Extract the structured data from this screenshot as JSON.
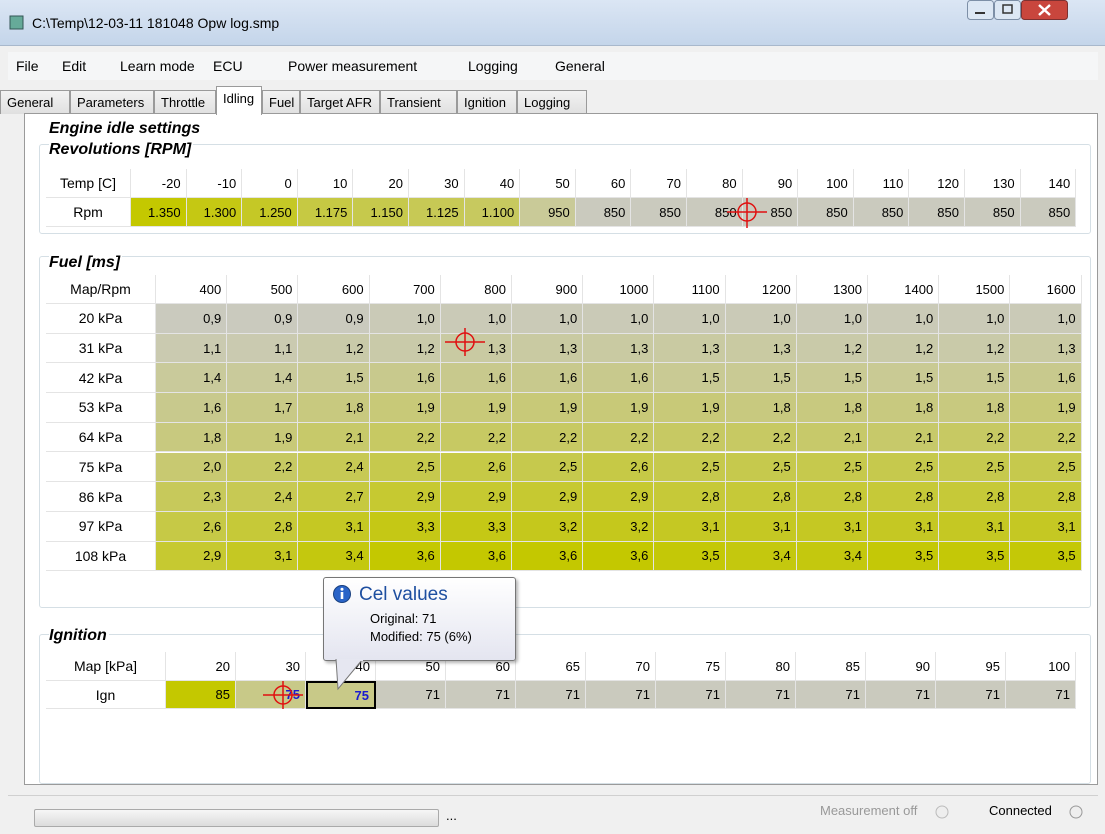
{
  "title": "C:\\Temp\\12-03-11 181048 Opw log.smp",
  "menu": [
    "File",
    "Edit",
    "Learn mode",
    "ECU",
    "Power measurement",
    "Logging",
    "General"
  ],
  "tabs": [
    "General",
    "Parameters",
    "Throttle",
    "Idling",
    "Fuel",
    "Target AFR",
    "Transient",
    "Ignition",
    "Logging"
  ],
  "section_title": "Engine idle settings",
  "rpm": {
    "title": "Revolutions [RPM]",
    "corner": "Temp [C]",
    "columns": [
      -20,
      -10,
      0,
      10,
      20,
      30,
      40,
      50,
      60,
      70,
      80,
      90,
      100,
      110,
      120,
      130,
      140
    ],
    "row_label": "Rpm",
    "values": [
      "1.350",
      "1.300",
      "1.250",
      "1.175",
      "1.150",
      "1.125",
      "1.100",
      "950",
      "850",
      "850",
      "850",
      "850",
      "850",
      "850",
      "850",
      "850",
      "850"
    ]
  },
  "fuel": {
    "title": "Fuel [ms]",
    "corner": "Map/Rpm",
    "columns": [
      400,
      500,
      600,
      700,
      800,
      900,
      1000,
      1100,
      1200,
      1300,
      1400,
      1500,
      1600
    ],
    "rows": [
      {
        "label": "20 kPa",
        "values": [
          "0,9",
          "0,9",
          "0,9",
          "1,0",
          "1,0",
          "1,0",
          "1,0",
          "1,0",
          "1,0",
          "1,0",
          "1,0",
          "1,0",
          "1,0"
        ]
      },
      {
        "label": "31 kPa",
        "values": [
          "1,1",
          "1,1",
          "1,2",
          "1,2",
          "1,3",
          "1,3",
          "1,3",
          "1,3",
          "1,3",
          "1,2",
          "1,2",
          "1,2",
          "1,3"
        ]
      },
      {
        "label": "42 kPa",
        "values": [
          "1,4",
          "1,4",
          "1,5",
          "1,6",
          "1,6",
          "1,6",
          "1,6",
          "1,5",
          "1,5",
          "1,5",
          "1,5",
          "1,5",
          "1,6"
        ]
      },
      {
        "label": "53 kPa",
        "values": [
          "1,6",
          "1,7",
          "1,8",
          "1,9",
          "1,9",
          "1,9",
          "1,9",
          "1,9",
          "1,8",
          "1,8",
          "1,8",
          "1,8",
          "1,9"
        ]
      },
      {
        "label": "64 kPa",
        "values": [
          "1,8",
          "1,9",
          "2,1",
          "2,2",
          "2,2",
          "2,2",
          "2,2",
          "2,2",
          "2,2",
          "2,1",
          "2,1",
          "2,2",
          "2,2"
        ]
      },
      {
        "label": "75 kPa",
        "values": [
          "2,0",
          "2,2",
          "2,4",
          "2,5",
          "2,6",
          "2,5",
          "2,6",
          "2,5",
          "2,5",
          "2,5",
          "2,5",
          "2,5",
          "2,5"
        ]
      },
      {
        "label": "86 kPa",
        "values": [
          "2,3",
          "2,4",
          "2,7",
          "2,9",
          "2,9",
          "2,9",
          "2,9",
          "2,8",
          "2,8",
          "2,8",
          "2,8",
          "2,8",
          "2,8"
        ]
      },
      {
        "label": "97 kPa",
        "values": [
          "2,6",
          "2,8",
          "3,1",
          "3,3",
          "3,3",
          "3,2",
          "3,2",
          "3,1",
          "3,1",
          "3,1",
          "3,1",
          "3,1",
          "3,1"
        ]
      },
      {
        "label": "108 kPa",
        "values": [
          "2,9",
          "3,1",
          "3,4",
          "3,6",
          "3,6",
          "3,6",
          "3,6",
          "3,5",
          "3,4",
          "3,4",
          "3,5",
          "3,5",
          "3,5"
        ]
      }
    ]
  },
  "ignition": {
    "title": "Ignition",
    "corner": "Map [kPa]",
    "columns": [
      20,
      30,
      40,
      50,
      60,
      65,
      70,
      75,
      80,
      85,
      90,
      95,
      100
    ],
    "row_label": "Ign",
    "values": [
      85,
      75,
      75,
      71,
      71,
      71,
      71,
      71,
      71,
      71,
      71,
      71,
      71
    ]
  },
  "tooltip": {
    "title": "Cel values",
    "original": "Original: 71",
    "modified": "Modified: 75 (6%)"
  },
  "status": {
    "ellipsis": "...",
    "measurement": "Measurement off",
    "connection": "Connected"
  }
}
